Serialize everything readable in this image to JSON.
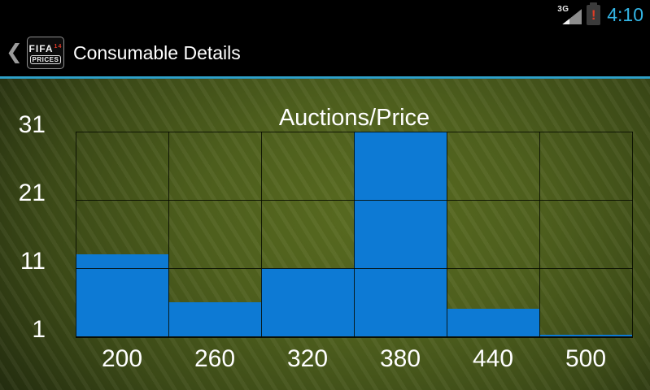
{
  "status_bar": {
    "network_label": "3G",
    "battery_alert": "!",
    "time": "4:10",
    "time_color": "#33b5e5"
  },
  "action_bar": {
    "back_icon": "❮",
    "logo": {
      "line1": "FIFA",
      "sup": "14",
      "line2": "PRICES"
    },
    "title": "Consumable Details",
    "underline_color": "#33b5e5"
  },
  "chart_data": {
    "type": "bar",
    "title": "Auctions/Price",
    "categories": [
      "200",
      "260",
      "320",
      "380",
      "440",
      "500"
    ],
    "values": [
      13,
      6,
      11,
      31,
      5,
      1
    ],
    "y_ticks": [
      31,
      21,
      11,
      1
    ],
    "ylim": [
      1,
      31
    ],
    "xlabel": "",
    "ylabel": "",
    "grid": true,
    "legend": "none",
    "bar_color": "#0d7ad4",
    "label_color": "#ffffff"
  }
}
